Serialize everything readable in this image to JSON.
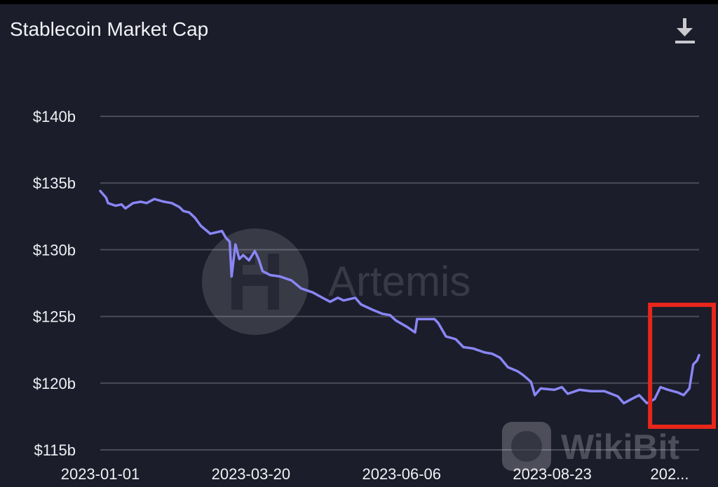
{
  "header": {
    "title": "Stablecoin Market Cap",
    "download_icon": "download-icon"
  },
  "watermarks": {
    "artemis": "Artemis",
    "wikibit": "WikiBit"
  },
  "colors": {
    "background": "#1b1d2b",
    "line": "#8a86f5",
    "grid": "#4a4c5a",
    "highlight": "#e8261a"
  },
  "chart_data": {
    "type": "line",
    "title": "Stablecoin Market Cap",
    "xlabel": "",
    "ylabel": "",
    "ylim": [
      115,
      142
    ],
    "xlim": [
      "2023-01-01",
      "2023-11-07"
    ],
    "grid": true,
    "y_ticks": [
      140,
      135,
      130,
      125,
      120,
      115
    ],
    "y_tick_labels": [
      "$140b",
      "$135b",
      "$130b",
      "$125b",
      "$120b",
      "$115b"
    ],
    "x_ticks": [
      "2023-01-01",
      "2023-03-20",
      "2023-06-06",
      "2023-08-23",
      "2023-11-07"
    ],
    "x_tick_labels": [
      "2023-01-01",
      "2023-03-20",
      "2023-06-06",
      "2023-08-23",
      "202..."
    ],
    "unit": "billion USD",
    "annotation": {
      "type": "highlight-box",
      "from": "2023-10-17",
      "to": "2023-11-07"
    },
    "series": [
      {
        "x": [
          "2023-01-01",
          "2023-01-04",
          "2023-01-05",
          "2023-01-09",
          "2023-01-12",
          "2023-01-14",
          "2023-01-18",
          "2023-01-22",
          "2023-01-25",
          "2023-01-29",
          "2023-02-03",
          "2023-02-07",
          "2023-02-11",
          "2023-02-13",
          "2023-02-16",
          "2023-02-19",
          "2023-02-22",
          "2023-02-27",
          "2023-03-05",
          "2023-03-07",
          "2023-03-09",
          "2023-03-10",
          "2023-03-12",
          "2023-03-14",
          "2023-03-16",
          "2023-03-19",
          "2023-03-22",
          "2023-03-24",
          "2023-03-26",
          "2023-03-30",
          "2023-04-04",
          "2023-04-10",
          "2023-04-15",
          "2023-04-21",
          "2023-04-26",
          "2023-04-30",
          "2023-05-04",
          "2023-05-07",
          "2023-05-13",
          "2023-05-16",
          "2023-05-22",
          "2023-05-27",
          "2023-05-31",
          "2023-06-03",
          "2023-06-09",
          "2023-06-13",
          "2023-06-14",
          "2023-06-18",
          "2023-06-23",
          "2023-06-25",
          "2023-06-29",
          "2023-07-04",
          "2023-07-08",
          "2023-07-13",
          "2023-07-19",
          "2023-07-23",
          "2023-07-27",
          "2023-07-31",
          "2023-08-05",
          "2023-08-08",
          "2023-08-12",
          "2023-08-14",
          "2023-08-17",
          "2023-08-24",
          "2023-08-28",
          "2023-08-31",
          "2023-09-06",
          "2023-09-12",
          "2023-09-19",
          "2023-09-26",
          "2023-09-29",
          "2023-10-03",
          "2023-10-07",
          "2023-10-11",
          "2023-10-15",
          "2023-10-18",
          "2023-10-22",
          "2023-10-27",
          "2023-10-30",
          "2023-11-02",
          "2023-11-04",
          "2023-11-06",
          "2023-11-07"
        ],
        "values": [
          134.4,
          133.9,
          133.5,
          133.3,
          133.4,
          133.1,
          133.5,
          133.6,
          133.5,
          133.8,
          133.6,
          133.5,
          133.2,
          132.9,
          132.8,
          132.4,
          131.8,
          131.2,
          131.4,
          130.9,
          130.6,
          128.0,
          130.4,
          129.3,
          129.6,
          129.2,
          129.9,
          129.3,
          128.4,
          128.1,
          128.0,
          127.7,
          127.1,
          126.8,
          126.4,
          126.1,
          126.4,
          126.2,
          126.4,
          125.9,
          125.5,
          125.2,
          125.1,
          124.7,
          124.2,
          123.8,
          124.8,
          124.8,
          124.8,
          124.5,
          123.5,
          123.3,
          122.7,
          122.6,
          122.3,
          122.2,
          121.9,
          121.2,
          120.9,
          120.6,
          120.1,
          119.1,
          119.6,
          119.5,
          119.7,
          119.2,
          119.5,
          119.4,
          119.4,
          119.0,
          118.5,
          118.8,
          119.1,
          118.5,
          118.8,
          119.7,
          119.5,
          119.3,
          119.1,
          119.6,
          121.4,
          121.7,
          122.1
        ]
      }
    ]
  }
}
